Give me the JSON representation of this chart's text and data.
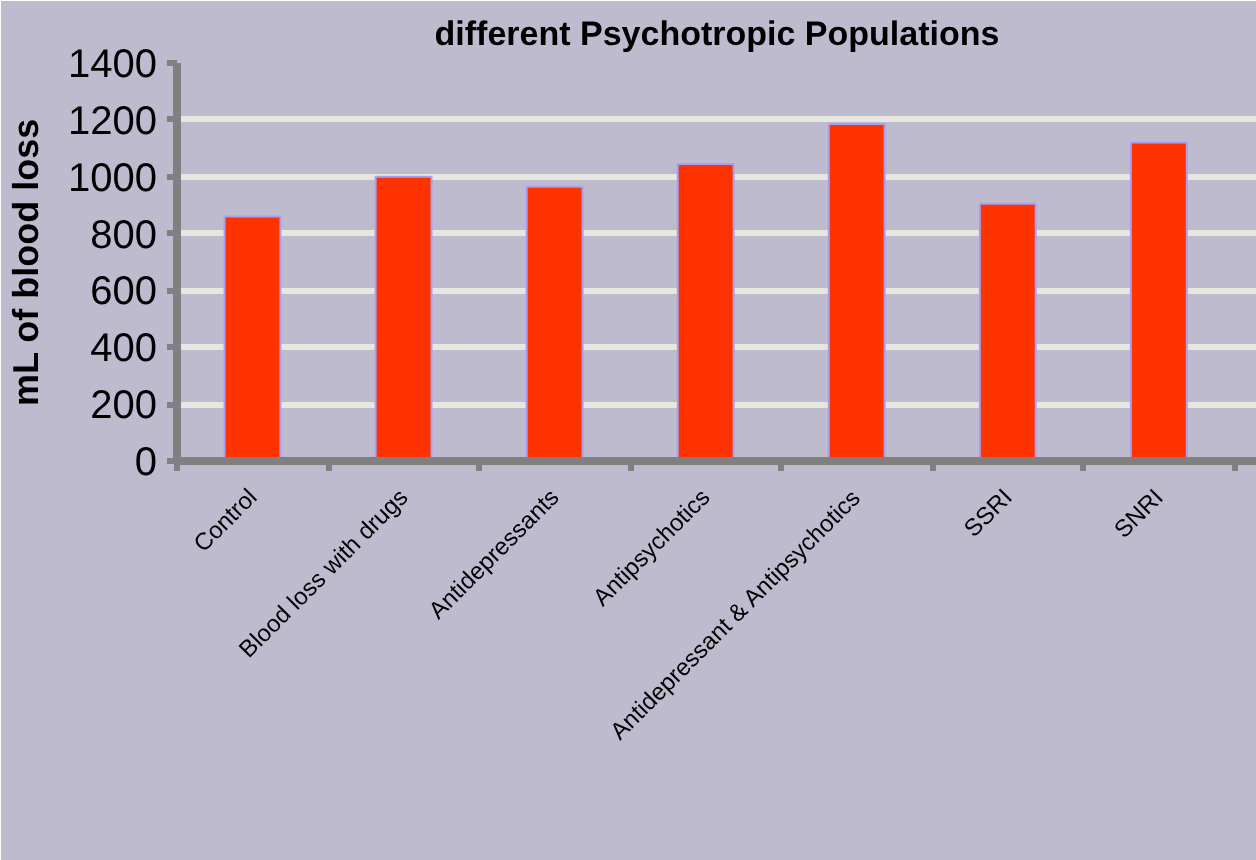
{
  "chart_data": {
    "type": "bar",
    "title": "different Psychotropic Populations",
    "ylabel": "mL of blood loss",
    "categories": [
      "Control",
      "Blood loss with drugs",
      "Antidepressants",
      "Antipsychotics",
      "Antidepressant & Antipsychotics",
      "SSRI",
      "SNRI"
    ],
    "values": [
      860,
      1000,
      965,
      1045,
      1185,
      905,
      1120
    ],
    "color": "#ff3300",
    "ylim": [
      0,
      1400
    ],
    "yticks": [
      0,
      200,
      400,
      600,
      800,
      1000,
      1200,
      1400
    ],
    "grid": "y"
  }
}
